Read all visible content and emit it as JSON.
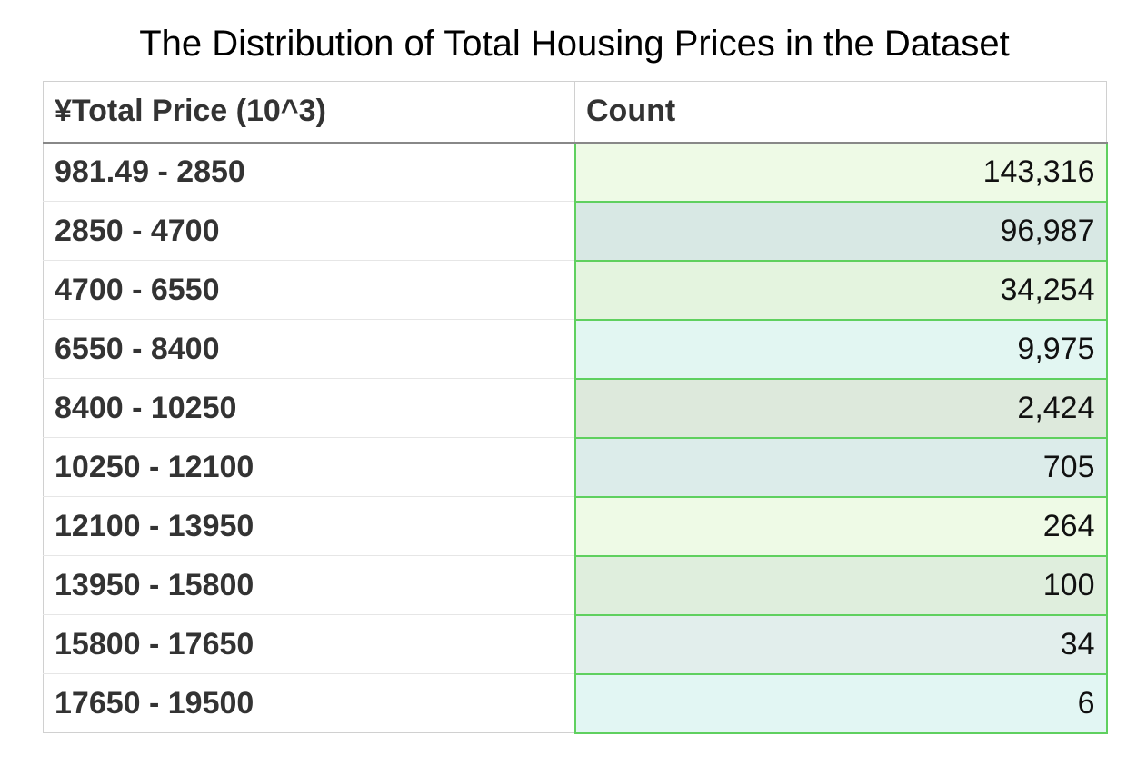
{
  "chart_data": {
    "type": "table",
    "title": "The Distribution of Total Housing Prices in the Dataset",
    "columns": [
      "¥Total Price (10^3)",
      "Count"
    ],
    "rows": [
      {
        "range": "981.49 - 2850",
        "count": "143,316",
        "bg": "#eefae6"
      },
      {
        "range": "2850 - 4700",
        "count": "96,987",
        "bg": "#d8e8e4"
      },
      {
        "range": "4700 - 6550",
        "count": "34,254",
        "bg": "#e4f4df"
      },
      {
        "range": "6550 - 8400",
        "count": "9,975",
        "bg": "#e2f6f2"
      },
      {
        "range": "8400 - 10250",
        "count": "2,424",
        "bg": "#dde9dc"
      },
      {
        "range": "10250 - 12100",
        "count": "705",
        "bg": "#dcecea"
      },
      {
        "range": "12100 - 13950",
        "count": "264",
        "bg": "#eefae6"
      },
      {
        "range": "13950 - 15800",
        "count": "100",
        "bg": "#dfeedd"
      },
      {
        "range": "15800 - 17650",
        "count": "34",
        "bg": "#e2eeec"
      },
      {
        "range": "17650 - 19500",
        "count": "6",
        "bg": "#e2f6f3"
      }
    ]
  },
  "colors": {
    "value_border": "#5fd05f",
    "header_rule": "#888888",
    "text": "#333333"
  }
}
